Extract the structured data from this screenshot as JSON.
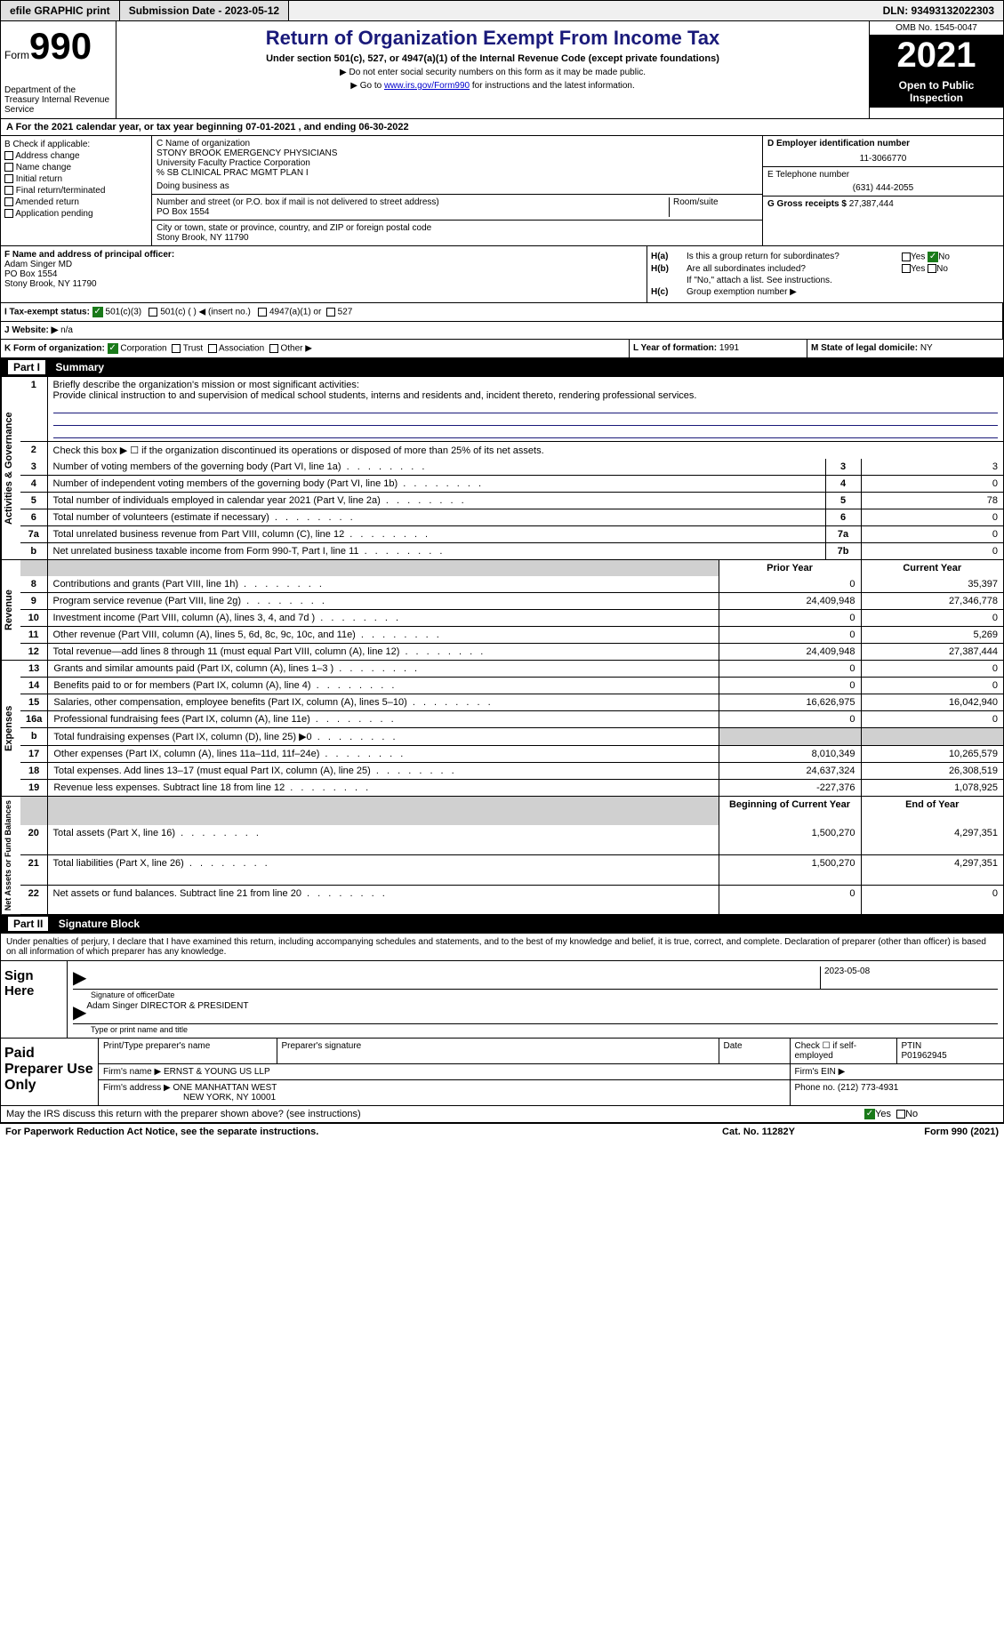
{
  "topbar": {
    "efile": "efile GRAPHIC print",
    "submission": "Submission Date - 2023-05-12",
    "dln": "DLN: 93493132022303"
  },
  "form": {
    "form_label": "Form",
    "form_num": "990",
    "dept": "Department of the Treasury Internal Revenue Service"
  },
  "header": {
    "title": "Return of Organization Exempt From Income Tax",
    "sub": "Under section 501(c), 527, or 4947(a)(1) of the Internal Revenue Code (except private foundations)",
    "note1": "▶ Do not enter social security numbers on this form as it may be made public.",
    "note2_pre": "▶ Go to ",
    "note2_link": "www.irs.gov/Form990",
    "note2_post": " for instructions and the latest information.",
    "omb": "OMB No. 1545-0047",
    "year": "2021",
    "open": "Open to Public Inspection"
  },
  "tax_year": "A For the 2021 calendar year, or tax year beginning 07-01-2021   , and ending 06-30-2022",
  "b": {
    "title": "B Check if applicable:",
    "items": [
      "Address change",
      "Name change",
      "Initial return",
      "Final return/terminated",
      "Amended return",
      "Application pending"
    ]
  },
  "c": {
    "name_lbl": "C Name of organization",
    "name1": "STONY BROOK EMERGENCY PHYSICIANS",
    "name2": "University Faculty Practice Corporation",
    "name3": "% SB CLINICAL PRAC MGMT PLAN I",
    "dba": "Doing business as",
    "addr_lbl": "Number and street (or P.O. box if mail is not delivered to street address)",
    "addr": "PO Box 1554",
    "room_lbl": "Room/suite",
    "city_lbl": "City or town, state or province, country, and ZIP or foreign postal code",
    "city": "Stony Brook, NY  11790"
  },
  "de": {
    "ein_lbl": "D Employer identification number",
    "ein": "11-3066770",
    "tel_lbl": "E Telephone number",
    "tel": "(631) 444-2055",
    "gross_lbl": "G Gross receipts $",
    "gross": "27,387,444"
  },
  "f": {
    "lbl": "F  Name and address of principal officer:",
    "name": "Adam Singer MD",
    "addr1": "PO Box 1554",
    "addr2": "Stony Brook, NY  11790"
  },
  "h": {
    "ha_lbl": "H(a)",
    "ha_txt": "Is this a group return for subordinates?",
    "hb_lbl": "H(b)",
    "hb_txt": "Are all subordinates included?",
    "hb_note": "If \"No,\" attach a list. See instructions.",
    "hc_lbl": "H(c)",
    "hc_txt": "Group exemption number ▶",
    "yes": "Yes",
    "no": "No"
  },
  "i": {
    "lbl": "I  Tax-exempt status:",
    "o1": "501(c)(3)",
    "o2": "501(c) (   ) ◀ (insert no.)",
    "o3": "4947(a)(1) or",
    "o4": "527"
  },
  "j": {
    "lbl": "J  Website: ▶",
    "val": "n/a"
  },
  "k": {
    "lbl": "K Form of organization:",
    "o1": "Corporation",
    "o2": "Trust",
    "o3": "Association",
    "o4": "Other ▶"
  },
  "l": {
    "lbl": "L Year of formation:",
    "val": "1991"
  },
  "m": {
    "lbl": "M State of legal domicile:",
    "val": "NY"
  },
  "part1": {
    "label": "Part I",
    "title": "Summary"
  },
  "summary": {
    "line1_lbl": "Briefly describe the organization's mission or most significant activities:",
    "line1_txt": "Provide clinical instruction to and supervision of medical school students, interns and residents and, incident thereto, rendering professional services.",
    "line2": "Check this box ▶ ☐  if the organization discontinued its operations or disposed of more than 25% of its net assets.",
    "rows": [
      {
        "n": "3",
        "lbl": "Number of voting members of the governing body (Part VI, line 1a)",
        "box": "3",
        "val": "3"
      },
      {
        "n": "4",
        "lbl": "Number of independent voting members of the governing body (Part VI, line 1b)",
        "box": "4",
        "val": "0"
      },
      {
        "n": "5",
        "lbl": "Total number of individuals employed in calendar year 2021 (Part V, line 2a)",
        "box": "5",
        "val": "78"
      },
      {
        "n": "6",
        "lbl": "Total number of volunteers (estimate if necessary)",
        "box": "6",
        "val": "0"
      },
      {
        "n": "7a",
        "lbl": "Total unrelated business revenue from Part VIII, column (C), line 12",
        "box": "7a",
        "val": "0"
      },
      {
        "n": "b",
        "lbl": "Net unrelated business taxable income from Form 990-T, Part I, line 11",
        "box": "7b",
        "val": "0"
      }
    ],
    "prior_hdr": "Prior Year",
    "current_hdr": "Current Year",
    "revenue": [
      {
        "n": "8",
        "lbl": "Contributions and grants (Part VIII, line 1h)",
        "prior": "0",
        "cur": "35,397"
      },
      {
        "n": "9",
        "lbl": "Program service revenue (Part VIII, line 2g)",
        "prior": "24,409,948",
        "cur": "27,346,778"
      },
      {
        "n": "10",
        "lbl": "Investment income (Part VIII, column (A), lines 3, 4, and 7d )",
        "prior": "0",
        "cur": "0"
      },
      {
        "n": "11",
        "lbl": "Other revenue (Part VIII, column (A), lines 5, 6d, 8c, 9c, 10c, and 11e)",
        "prior": "0",
        "cur": "5,269"
      },
      {
        "n": "12",
        "lbl": "Total revenue—add lines 8 through 11 (must equal Part VIII, column (A), line 12)",
        "prior": "24,409,948",
        "cur": "27,387,444"
      }
    ],
    "expenses": [
      {
        "n": "13",
        "lbl": "Grants and similar amounts paid (Part IX, column (A), lines 1–3 )",
        "prior": "0",
        "cur": "0"
      },
      {
        "n": "14",
        "lbl": "Benefits paid to or for members (Part IX, column (A), line 4)",
        "prior": "0",
        "cur": "0"
      },
      {
        "n": "15",
        "lbl": "Salaries, other compensation, employee benefits (Part IX, column (A), lines 5–10)",
        "prior": "16,626,975",
        "cur": "16,042,940"
      },
      {
        "n": "16a",
        "lbl": "Professional fundraising fees (Part IX, column (A), line 11e)",
        "prior": "0",
        "cur": "0"
      },
      {
        "n": "b",
        "lbl": "Total fundraising expenses (Part IX, column (D), line 25) ▶0",
        "prior": "",
        "cur": "",
        "grey": true
      },
      {
        "n": "17",
        "lbl": "Other expenses (Part IX, column (A), lines 11a–11d, 11f–24e)",
        "prior": "8,010,349",
        "cur": "10,265,579"
      },
      {
        "n": "18",
        "lbl": "Total expenses. Add lines 13–17 (must equal Part IX, column (A), line 25)",
        "prior": "24,637,324",
        "cur": "26,308,519"
      },
      {
        "n": "19",
        "lbl": "Revenue less expenses. Subtract line 18 from line 12",
        "prior": "-227,376",
        "cur": "1,078,925"
      }
    ],
    "begin_hdr": "Beginning of Current Year",
    "end_hdr": "End of Year",
    "netassets": [
      {
        "n": "20",
        "lbl": "Total assets (Part X, line 16)",
        "prior": "1,500,270",
        "cur": "4,297,351"
      },
      {
        "n": "21",
        "lbl": "Total liabilities (Part X, line 26)",
        "prior": "1,500,270",
        "cur": "4,297,351"
      },
      {
        "n": "22",
        "lbl": "Net assets or fund balances. Subtract line 21 from line 20",
        "prior": "0",
        "cur": "0"
      }
    ]
  },
  "part2": {
    "label": "Part II",
    "title": "Signature Block"
  },
  "sig": {
    "penalty": "Under penalties of perjury, I declare that I have examined this return, including accompanying schedules and statements, and to the best of my knowledge and belief, it is true, correct, and complete. Declaration of preparer (other than officer) is based on all information of which preparer has any knowledge.",
    "sign_here": "Sign Here",
    "sig_lbl": "Signature of officer",
    "date": "2023-05-08",
    "date_lbl": "Date",
    "name": "Adam Singer  DIRECTOR & PRESIDENT",
    "name_lbl": "Type or print name and title"
  },
  "preparer": {
    "lbl": "Paid Preparer Use Only",
    "col1": "Print/Type preparer's name",
    "col2": "Preparer's signature",
    "col3": "Date",
    "col4_lbl": "Check ☐ if self-employed",
    "col5_lbl": "PTIN",
    "col5": "P01962945",
    "firm_name_lbl": "Firm's name    ▶",
    "firm_name": "ERNST & YOUNG US LLP",
    "firm_ein_lbl": "Firm's EIN ▶",
    "firm_addr_lbl": "Firm's address ▶",
    "firm_addr1": "ONE MANHATTAN WEST",
    "firm_addr2": "NEW YORK, NY  10001",
    "phone_lbl": "Phone no.",
    "phone": "(212) 773-4931"
  },
  "discuss": {
    "txt": "May the IRS discuss this return with the preparer shown above? (see instructions)",
    "yes": "Yes",
    "no": "No"
  },
  "footer": {
    "f1": "For Paperwork Reduction Act Notice, see the separate instructions.",
    "f2": "Cat. No. 11282Y",
    "f3": "Form 990 (2021)"
  }
}
